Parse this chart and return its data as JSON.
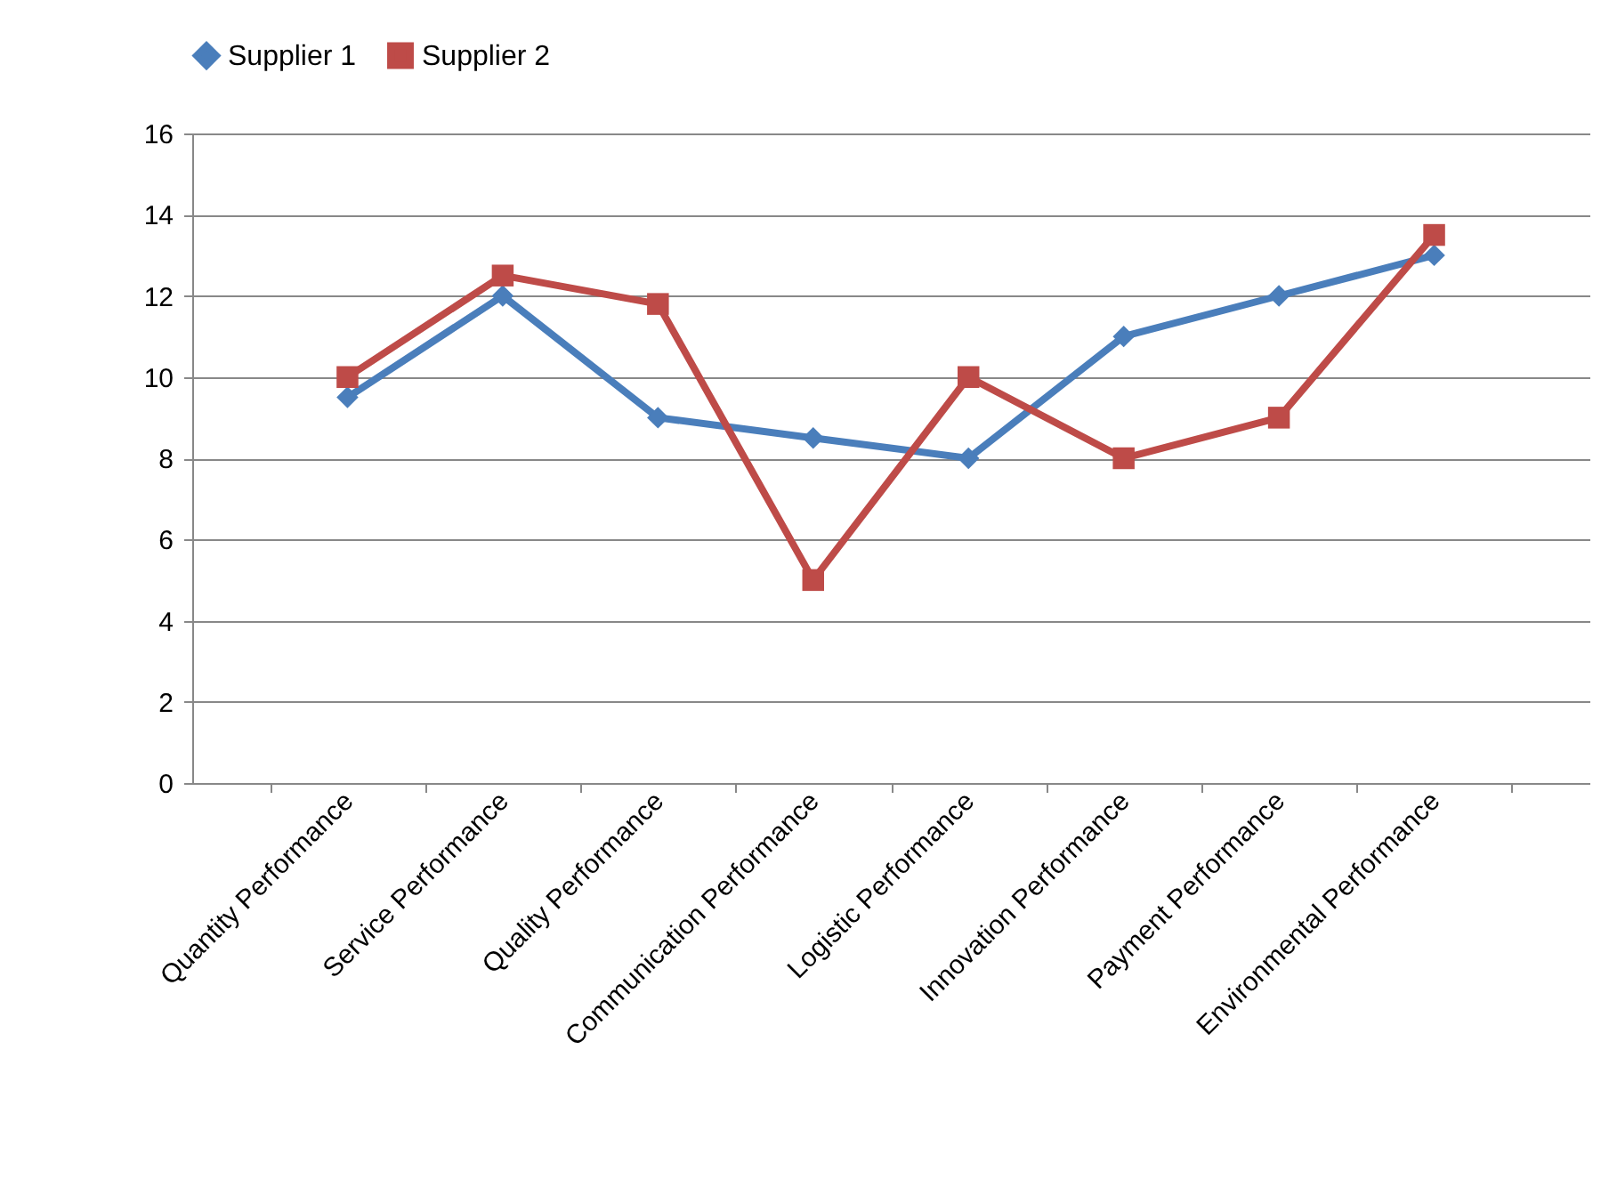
{
  "chart_data": {
    "type": "line",
    "categories": [
      "Quantity Performance",
      "Service Performance",
      "Quality Performance",
      "Communication Performance",
      "Logistic Performance",
      "Innovation Performance",
      "Payment Performance",
      "Environmental Performance"
    ],
    "series": [
      {
        "name": "Supplier 1",
        "color": "#4a7ebb",
        "marker": "diamond",
        "values": [
          9.5,
          12,
          9,
          8.5,
          8,
          11,
          12,
          13
        ]
      },
      {
        "name": "Supplier 2",
        "color": "#be4b48",
        "marker": "square",
        "values": [
          10,
          12.5,
          11.8,
          5,
          10,
          8,
          9,
          13.5
        ]
      }
    ],
    "ylim": [
      0,
      16
    ],
    "yticks": [
      0,
      2,
      4,
      6,
      8,
      10,
      12,
      14,
      16
    ],
    "grid": "y",
    "legend": "top",
    "line_style": "solid"
  }
}
